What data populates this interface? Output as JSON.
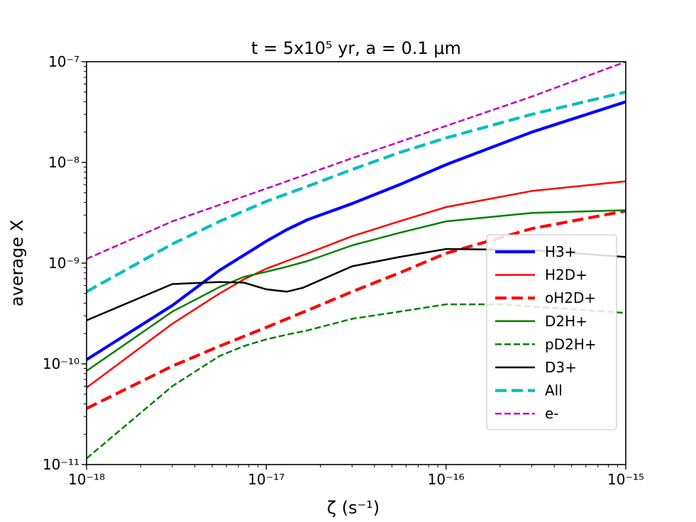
{
  "chart_data": {
    "type": "line",
    "title": "t = 5x10⁵ yr, a = 0.1 μm",
    "xlabel": "ζ (s⁻¹)",
    "ylabel": "average X",
    "xscale": "log",
    "yscale": "log",
    "xlim": [
      1e-18,
      1e-15
    ],
    "ylim": [
      1e-11,
      1e-07
    ],
    "xtick_labels": [
      "10⁻¹⁸",
      "10⁻¹⁷",
      "10⁻¹⁶",
      "10⁻¹⁵"
    ],
    "ytick_labels": [
      "10⁻¹¹",
      "10⁻¹⁰",
      "10⁻⁹",
      "10⁻⁸",
      "10⁻⁷"
    ],
    "grid": false,
    "legend_position": "center-right",
    "series": [
      {
        "name": "H3+",
        "color": "#0000ff",
        "style": "solid-thick",
        "x": [
          1e-18,
          3e-18,
          5.5e-18,
          7.5e-18,
          1e-17,
          1.3e-17,
          1.7e-17,
          3e-17,
          5.5e-17,
          1e-16,
          3e-16,
          1e-15
        ],
        "y": [
          1.1e-10,
          3.8e-10,
          8.5e-10,
          1.2e-09,
          1.65e-09,
          2.15e-09,
          2.7e-09,
          3.9e-09,
          6e-09,
          9.5e-09,
          2e-08,
          4e-08
        ]
      },
      {
        "name": "H2D+",
        "color": "#ff0000",
        "style": "solid",
        "x": [
          1e-18,
          3e-18,
          5.5e-18,
          7.5e-18,
          1e-17,
          1.3e-17,
          1.7e-17,
          3e-17,
          5.5e-17,
          1e-16,
          3e-16,
          1e-15
        ],
        "y": [
          5.8e-11,
          2.5e-10,
          5e-10,
          6.9e-10,
          8.8e-10,
          1.05e-09,
          1.25e-09,
          1.85e-09,
          2.6e-09,
          3.6e-09,
          5.2e-09,
          6.5e-09
        ]
      },
      {
        "name": "oH2D+",
        "color": "#ff0000",
        "style": "dashed-thick",
        "x": [
          1e-18,
          3e-18,
          5.5e-18,
          1e-17,
          1.7e-17,
          3e-17,
          5.5e-17,
          1e-16,
          3e-16,
          1e-15
        ],
        "y": [
          3.6e-11,
          9.5e-11,
          1.5e-10,
          2.3e-10,
          3.4e-10,
          5.2e-10,
          8e-10,
          1.25e-09,
          2.2e-09,
          3.3e-09
        ]
      },
      {
        "name": "D2H+",
        "color": "#008000",
        "style": "solid",
        "x": [
          1e-18,
          3e-18,
          5.5e-18,
          7.5e-18,
          1e-17,
          1.3e-17,
          1.7e-17,
          3e-17,
          5.5e-17,
          1e-16,
          3e-16,
          1e-15
        ],
        "y": [
          8.5e-11,
          3.3e-10,
          5.8e-10,
          7.3e-10,
          8.2e-10,
          9.2e-10,
          1.05e-09,
          1.5e-09,
          2e-09,
          2.6e-09,
          3.15e-09,
          3.35e-09
        ]
      },
      {
        "name": "pD2H+",
        "color": "#008000",
        "style": "dashed",
        "x": [
          1e-18,
          3e-18,
          5.5e-18,
          7.5e-18,
          1e-17,
          1.3e-17,
          1.7e-17,
          3e-17,
          5.5e-17,
          1e-16,
          2e-16,
          1e-15
        ],
        "y": [
          1.15e-11,
          6e-11,
          1.2e-10,
          1.5e-10,
          1.75e-10,
          1.95e-10,
          2.15e-10,
          2.8e-10,
          3.3e-10,
          3.9e-10,
          3.9e-10,
          3.2e-10
        ]
      },
      {
        "name": "D3+",
        "color": "#000000",
        "style": "solid",
        "x": [
          1e-18,
          3e-18,
          5.5e-18,
          7.5e-18,
          1e-17,
          1.3e-17,
          1.6e-17,
          3e-17,
          5.5e-17,
          1e-16,
          3e-16,
          1e-15
        ],
        "y": [
          2.7e-10,
          6.2e-10,
          6.5e-10,
          6.4e-10,
          5.5e-10,
          5.2e-10,
          5.7e-10,
          9.3e-10,
          1.15e-09,
          1.38e-09,
          1.35e-09,
          1.15e-09
        ]
      },
      {
        "name": "All",
        "color": "#00bfbf",
        "style": "dashed-thick",
        "x": [
          1e-18,
          3e-18,
          5.5e-18,
          1e-17,
          1.7e-17,
          3e-17,
          5.5e-17,
          1e-16,
          3e-16,
          1e-15
        ],
        "y": [
          5.2e-10,
          1.55e-09,
          2.6e-09,
          4.1e-09,
          5.8e-09,
          8.5e-09,
          1.25e-08,
          1.75e-08,
          3e-08,
          5e-08
        ]
      },
      {
        "name": "e-",
        "color": "#bf00bf",
        "style": "dashed",
        "x": [
          1e-18,
          3e-18,
          1e-17,
          3e-17,
          1e-16,
          3e-16,
          1e-15
        ],
        "y": [
          1.1e-09,
          2.6e-09,
          5.5e-09,
          1.1e-08,
          2.3e-08,
          4.5e-08,
          1e-07
        ]
      }
    ]
  }
}
